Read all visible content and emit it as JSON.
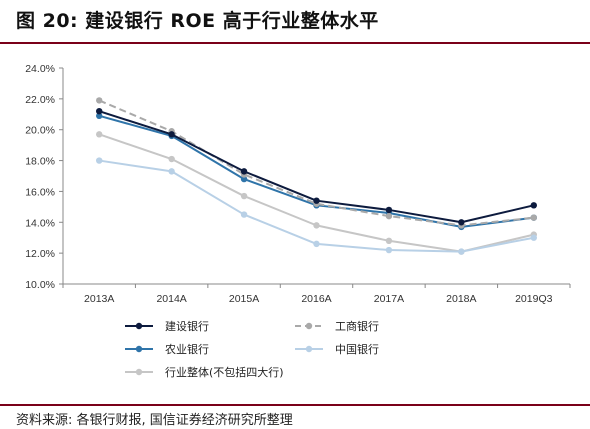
{
  "title": "图 20:  建设银行 ROE 高于行业整体水平",
  "source": "资料来源:  各银行财报,  国信证券经济研究所整理",
  "chart_data": {
    "type": "line",
    "categories": [
      "2013A",
      "2014A",
      "2015A",
      "2016A",
      "2017A",
      "2018A",
      "2019Q3"
    ],
    "ylim": [
      10.0,
      24.0
    ],
    "yticks": [
      10.0,
      12.0,
      14.0,
      16.0,
      18.0,
      20.0,
      22.0,
      24.0
    ],
    "ytick_labels": [
      "10.0%",
      "12.0%",
      "14.0%",
      "16.0%",
      "18.0%",
      "20.0%",
      "22.0%",
      "24.0%"
    ],
    "grid": false,
    "legend_position": "bottom",
    "series": [
      {
        "name": "建设银行",
        "color": "#0d1b3e",
        "dashed": false,
        "values": [
          21.2,
          19.7,
          17.3,
          15.4,
          14.8,
          14.0,
          15.1
        ]
      },
      {
        "name": "工商银行",
        "color": "#a9a9a9",
        "dashed": true,
        "values": [
          21.9,
          19.9,
          17.1,
          15.2,
          14.4,
          13.8,
          14.3
        ]
      },
      {
        "name": "农业银行",
        "color": "#2f74a9",
        "dashed": false,
        "values": [
          20.9,
          19.6,
          16.8,
          15.1,
          14.6,
          13.7,
          14.3
        ]
      },
      {
        "name": "中国银行",
        "color": "#b8d0e6",
        "dashed": false,
        "values": [
          18.0,
          17.3,
          14.5,
          12.6,
          12.2,
          12.1,
          13.0
        ]
      },
      {
        "name": "行业整体(不包括四大行)",
        "color": "#c6c6c6",
        "dashed": false,
        "values": [
          19.7,
          18.1,
          15.7,
          13.8,
          12.8,
          12.1,
          13.2
        ]
      }
    ]
  }
}
